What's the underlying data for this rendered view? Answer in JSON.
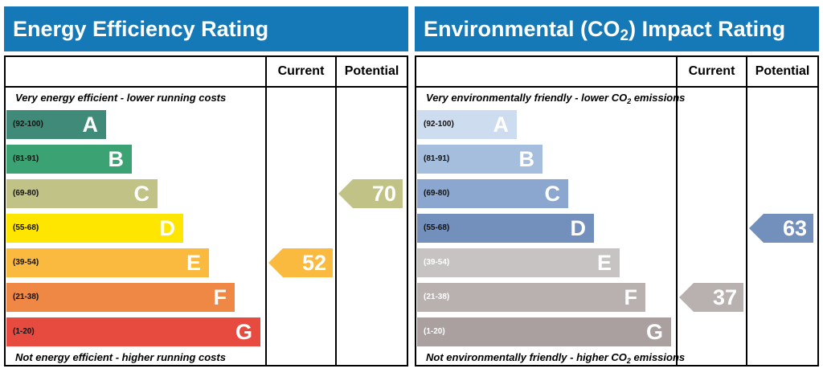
{
  "chart_data": [
    {
      "type": "rating-bands",
      "title": "Energy Efficiency Rating",
      "columns": [
        "Current",
        "Potential"
      ],
      "top_note": "Very energy efficient - lower running costs",
      "bottom_note": "Not energy efficient - higher running costs",
      "bands": [
        {
          "letter": "A",
          "range": "(92-100)",
          "color": "#3f8a78"
        },
        {
          "letter": "B",
          "range": "(81-91)",
          "color": "#3aa273"
        },
        {
          "letter": "C",
          "range": "(69-80)",
          "color": "#c1c285"
        },
        {
          "letter": "D",
          "range": "(55-68)",
          "color": "#ffe600"
        },
        {
          "letter": "E",
          "range": "(39-54)",
          "color": "#fab93f"
        },
        {
          "letter": "F",
          "range": "(21-38)",
          "color": "#ee8844"
        },
        {
          "letter": "G",
          "range": "(1-20)",
          "color": "#e74b3f"
        }
      ],
      "current": {
        "value": 52,
        "band": "E",
        "color": "#fab93f"
      },
      "potential": {
        "value": 70,
        "band": "C",
        "color": "#c1c285"
      }
    },
    {
      "type": "rating-bands",
      "title_parts": [
        "Environmental (CO",
        "2",
        ") Impact Rating"
      ],
      "columns": [
        "Current",
        "Potential"
      ],
      "top_note_parts": [
        "Very environmentally friendly - lower CO",
        "2",
        " emissions"
      ],
      "bottom_note_parts": [
        "Not environmentally friendly - higher CO",
        "2",
        " emissions"
      ],
      "bands": [
        {
          "letter": "A",
          "range": "(92-100)",
          "color": "#cddcee"
        },
        {
          "letter": "B",
          "range": "(81-91)",
          "color": "#a6bedd"
        },
        {
          "letter": "C",
          "range": "(69-80)",
          "color": "#8ba7cf"
        },
        {
          "letter": "D",
          "range": "(55-68)",
          "color": "#7390bd"
        },
        {
          "letter": "E",
          "range": "(39-54)",
          "color": "#c7c3c2"
        },
        {
          "letter": "F",
          "range": "(21-38)",
          "color": "#b9b1b0"
        },
        {
          "letter": "G",
          "range": "(1-20)",
          "color": "#a9a09f"
        }
      ],
      "current": {
        "value": 37,
        "band": "F",
        "color": "#b9b1b0"
      },
      "potential": {
        "value": 63,
        "band": "D",
        "color": "#7390bd"
      }
    }
  ]
}
